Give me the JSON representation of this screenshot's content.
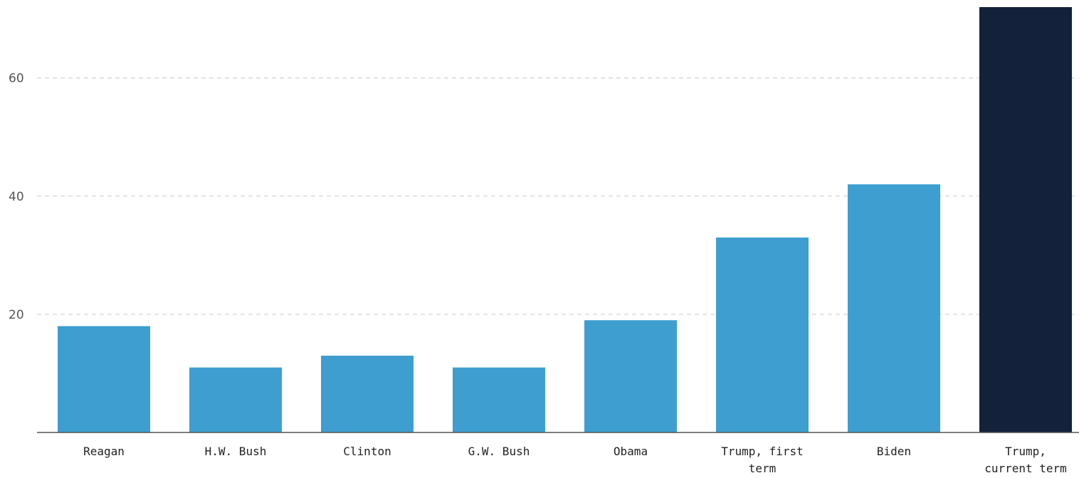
{
  "chart_data": {
    "type": "bar",
    "categories": [
      "Reagan",
      "H.W. Bush",
      "Clinton",
      "G.W. Bush",
      "Obama",
      "Trump, first term",
      "Biden",
      "Trump, current term"
    ],
    "category_lines": [
      [
        "Reagan"
      ],
      [
        "H.W. Bush"
      ],
      [
        "Clinton"
      ],
      [
        "G.W. Bush"
      ],
      [
        "Obama"
      ],
      [
        "Trump, first",
        "term"
      ],
      [
        "Biden"
      ],
      [
        "Trump,",
        "current term"
      ]
    ],
    "values": [
      18,
      11,
      13,
      11,
      19,
      33,
      42,
      72
    ],
    "highlight_index": 7,
    "yticks": [
      20,
      40,
      60
    ],
    "ylim": [
      0,
      72
    ],
    "grid": true,
    "colors": {
      "bar": "#3d9ecf",
      "highlight": "#14213a",
      "axis": "#555555",
      "grid": "#c8c8c8"
    }
  }
}
